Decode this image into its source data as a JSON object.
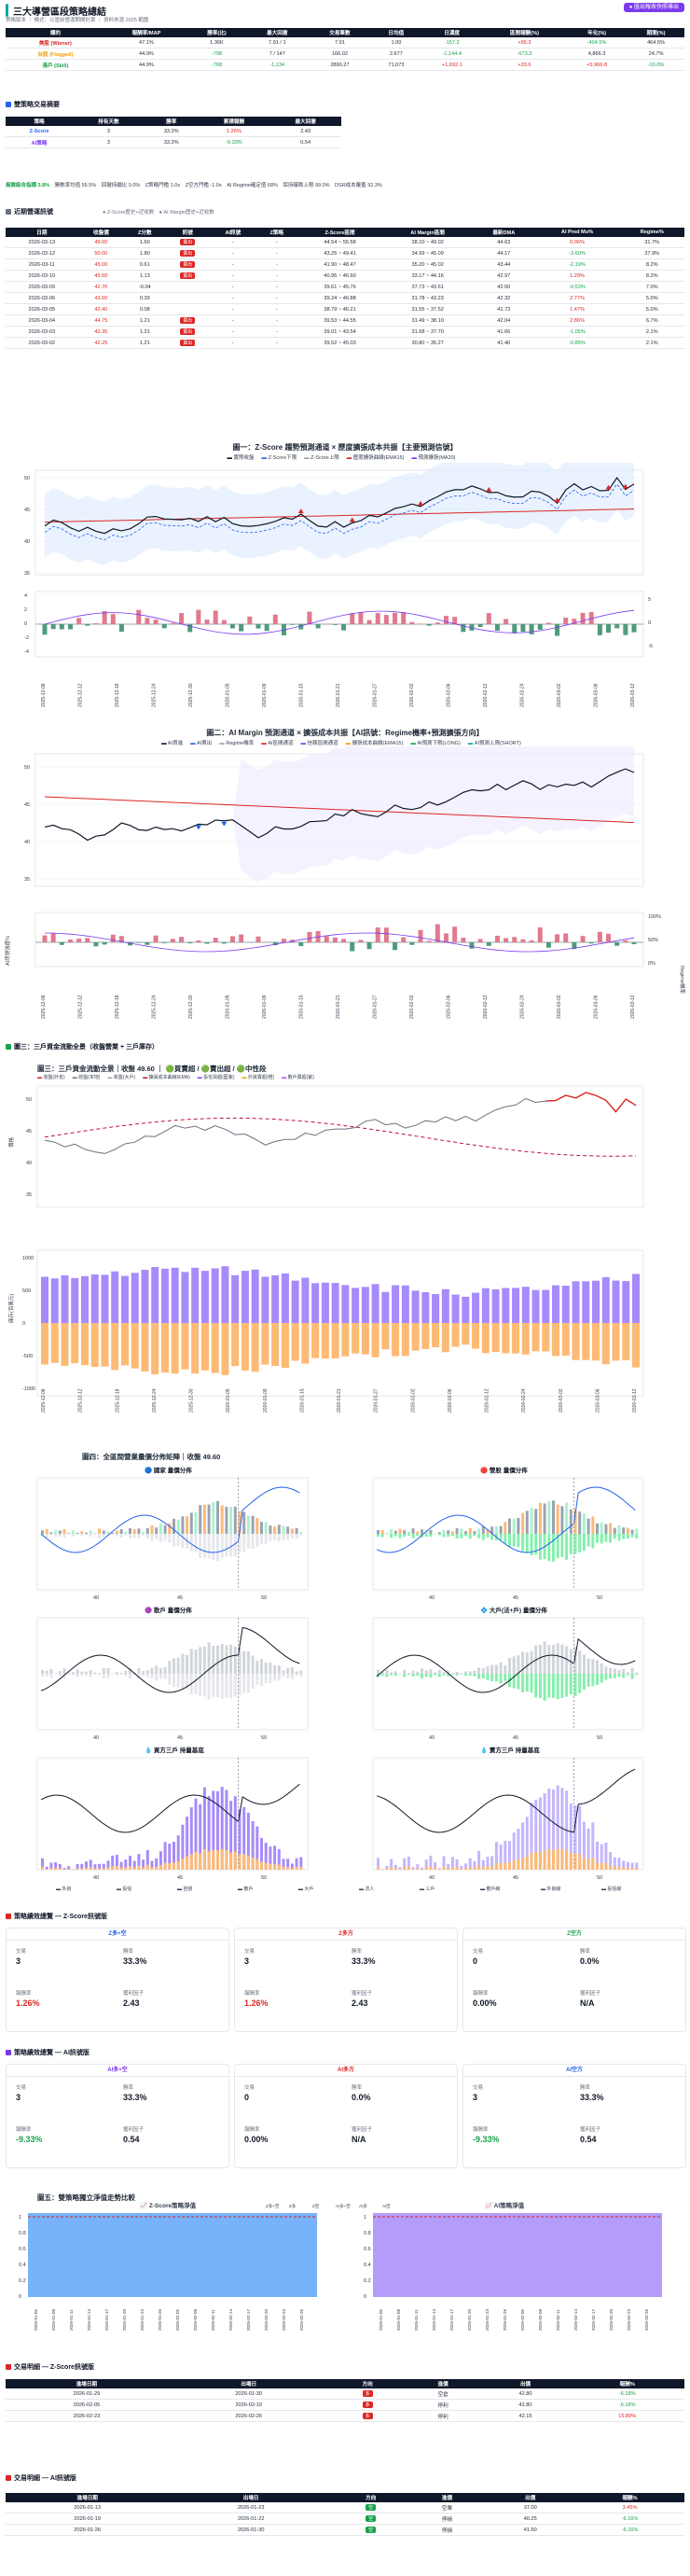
{
  "header": {
    "title": "三大導營區段策略總結",
    "subtitle": "策略版本 ｜ 模式：以當前營運期間計算 ｜ 資料來源 2025 範圍",
    "button_label": "● 匯出報表快照導出"
  },
  "summary_table": {
    "headers": [
      "標的",
      "報酬率/MAP",
      "勝率(比)",
      "最大回撤",
      "交易筆數",
      "日均值",
      "日濃度",
      "區間報酬(%)",
      "年化(%)",
      "期間(%)"
    ],
    "rows": [
      [
        "美股 (Wiener)",
        "47.1%",
        "1.36K",
        "7.91 / 1",
        "7.91",
        "1.00",
        "-157.2",
        "+95.3",
        "-404.5%",
        "464.5%"
      ],
      [
        "台股 (Flagged)",
        "44.9%",
        "-798",
        "7 / 147",
        "166.02",
        "2.677",
        "-1,144.4",
        "-673.3",
        "4,866.3",
        "24.7%"
      ],
      [
        "港戶 (Skill)",
        "44.9%",
        "-768",
        "-1,134",
        "2890.27",
        "71,073",
        "+1,692.1",
        "+33.6",
        "+5,966.8",
        "-10.0%"
      ]
    ]
  },
  "strategy_section": {
    "title": "雙策略交易摘要",
    "headers": [
      "策略",
      "持有天數",
      "勝率",
      "累積報酬",
      "最大回撤"
    ],
    "rows": [
      [
        "Z-Score",
        "3",
        "33.3%",
        "1.26%",
        "2.43"
      ],
      [
        "AI策略",
        "3",
        "33.3%",
        "-9.33%",
        "0.54"
      ]
    ],
    "stats": [
      "風險綜合指標 3.8%",
      "勝數率均值 55.5%",
      "回撤持續比 0.0%",
      "Z策略門檻 1.0x",
      "Z空方門檻 -1.0x",
      "AI Regime確定值 68%",
      "保持曝險上限 99.0%",
      "DSR成本覆蓋 92.3%"
    ]
  },
  "recent_section": {
    "title": "近期營運訊號",
    "legend": [
      "Z-Score歷史+近收數",
      "AI Margin歷史+近收數"
    ],
    "headers": [
      "日期",
      "收盤價",
      "Z分數",
      "訊號",
      "AI訊號",
      "Z策略",
      "Z-Score區間",
      "AI Margin區間",
      "最新DMA",
      "AI Pred Mu%",
      "Regime%"
    ],
    "rows": [
      [
        "2026-03-13",
        "49.60",
        "1.60",
        "賣出",
        "-",
        "-",
        "44.54 ~ 55.58",
        "38.10 ~ 49.02",
        "44.63",
        "0.06%",
        "31.7%"
      ],
      [
        "2026-03-12",
        "50.00",
        "1.80",
        "賣出",
        "-",
        "-",
        "43.25 ~ 49.41",
        "34.99 ~ 45.09",
        "44.17",
        "-3.60%",
        "37.9%"
      ],
      [
        "2026-03-11",
        "45.00",
        "0.61",
        "賣出",
        "-",
        "-",
        "41.90 ~ 48.47",
        "35.20 ~ 45.02",
        "43.44",
        "-2.19%",
        "8.2%"
      ],
      [
        "2026-03-10",
        "45.50",
        "1.13",
        "賣出",
        "-",
        "-",
        "40.95 ~ 46.60",
        "33.17 ~ 44.16",
        "42.97",
        "1.29%",
        "8.2%"
      ],
      [
        "2026-03-09",
        "42.70",
        "-0.04",
        "",
        "-",
        "-",
        "39.61 ~ 45.76",
        "37.73 ~ 43.61",
        "42.50",
        "-0.53%",
        "7.0%"
      ],
      [
        "2026-03-06",
        "43.60",
        "0.39",
        "",
        "-",
        "-",
        "39.24 ~ 46.88",
        "31.78 ~ 43.23",
        "42.32",
        "2.77%",
        "5.0%"
      ],
      [
        "2026-03-05",
        "42.40",
        "0.08",
        "",
        "-",
        "-",
        "38.79 ~ 46.21",
        "31.55 ~ 37.52",
        "41.73",
        "1.47%",
        "5.0%"
      ],
      [
        "2026-03-04",
        "44.75",
        "1.21",
        "賣出",
        "-",
        "-",
        "39.53 ~ 44.55",
        "31.49 ~ 38.10",
        "42.04",
        "2.86%",
        "6.7%"
      ],
      [
        "2026-03-03",
        "42.35",
        "1.21",
        "賣出",
        "-",
        "-",
        "39.01 ~ 43.54",
        "31.68 ~ 37.70",
        "41.66",
        "-1.05%",
        "2.1%"
      ],
      [
        "2026-03-02",
        "42.25",
        "1.21",
        "賣出",
        "-",
        "-",
        "39.52 ~ 45.03",
        "30.80 ~ 35.27",
        "41.40",
        "-0.85%",
        "2.1%"
      ]
    ]
  },
  "chart1": {
    "title": "圖一：Z-Score 趨勢預測通道 × 歷度擴張成本共振【主要預測信號】",
    "legend": [
      "實際收盤",
      "Z-Score下限",
      "Z-Score上限",
      "歷度擴張曲線(EMA15)",
      "預測擴張(MA20)"
    ],
    "xticks": [
      "2025-12-08",
      "2025-12-12",
      "2025-12-18",
      "2025-12-24",
      "2025-12-30",
      "2026-01-05",
      "2026-01-09",
      "2026-01-15",
      "2026-01-21",
      "2026-01-27",
      "2026-02-02",
      "2026-02-06",
      "2026-02-12",
      "2026-02-24",
      "2026-03-02",
      "2026-03-06",
      "2026-03-12"
    ],
    "yticks_top": [
      "50",
      "45",
      "40",
      "35"
    ],
    "yticks_bottom": [
      "4",
      "2",
      "0",
      "-2",
      "-4"
    ],
    "yticks_bottom_right": [
      "5",
      "0",
      "-5"
    ]
  },
  "chart2": {
    "title": "圖二：AI Margin 預測通道 × 擴張成本共振【AI訊號：Regime機率+預測擴張方向】",
    "legend": [
      "AI買進",
      "AI賣出",
      "Regime機率",
      "AI區間通道",
      "信賴區間通道",
      "擴張成本曲線(EMA15)",
      "AI預測下限(LONG)",
      "AI預測上限(SHORT)"
    ],
    "ylabel_left": "AI訊號強度%",
    "ylabel_right": "Regime機率",
    "yticks_top": [
      "50",
      "45",
      "40",
      "35"
    ],
    "yticks_right": [
      "100%",
      "50%",
      "0%"
    ]
  },
  "chart3": {
    "section_title": "圖三：三戶資金流動全景（收盤營業 + 三戶庫存）",
    "title": "圖三：三戶資金流動全景｜收盤 49.60 ｜ 🟢買賣超 / 🟢賣出超 / 🟢中性段",
    "legend": [
      "收盤(外省)",
      "收盤(本地)",
      "收盤(大戶)",
      "擴張成本曲線(EMA)",
      "投信買超(藍紫)",
      "外資賣超(橙)",
      "散戶賣超(紫)"
    ],
    "ylabel_top": "價格",
    "ylabel_bottom": "庫存(百萬元)",
    "yticks_top": [
      "50",
      "45",
      "40",
      "35"
    ],
    "yticks_bottom": [
      "1000",
      "500",
      "0",
      "-500",
      "-1000"
    ]
  },
  "chart4": {
    "title": "圖四：全區間營業量價分佈矩陣｜收盤 49.60",
    "panels": [
      "🔵 國家 量價分佈",
      "🔴 營股 量價分佈",
      "🟣 散戶 量價分佈",
      "💠 大戶(法+戶) 量價分佈",
      "💧 買方三戶 持量基底",
      "💧 賣方三戶 持量基底"
    ],
    "xticks": [
      "40",
      "45",
      "50"
    ],
    "legend": [
      "外資",
      "投信",
      "自營",
      "散戶",
      "大戶",
      "法人",
      "三戶",
      "散戶線",
      "外資線",
      "投信線"
    ]
  },
  "zscore_summary": {
    "title": "策略績效總覽 — Z-Score訊號版",
    "cards": [
      {
        "label": "Z多+空",
        "trades": "3",
        "winrate": "33.3%",
        "ret": "1.26%",
        "pf": "2.43",
        "color": "#2563eb"
      },
      {
        "label": "Z多方",
        "trades": "3",
        "winrate": "33.3%",
        "ret": "1.26%",
        "pf": "2.43",
        "color": "#dc2626"
      },
      {
        "label": "Z空方",
        "trades": "0",
        "winrate": "0.0%",
        "ret": "0.00%",
        "pf": "N/A",
        "color": "#16a34a"
      }
    ],
    "labels": {
      "trades": "交易",
      "winrate": "勝率",
      "ret": "報酬率",
      "pf": "獲利因子"
    }
  },
  "ai_summary": {
    "title": "策略績效總覽 — AI訊號版",
    "cards": [
      {
        "label": "AI多+空",
        "trades": "3",
        "winrate": "33.3%",
        "ret": "-9.33%",
        "pf": "0.54",
        "color": "#7c3aed"
      },
      {
        "label": "AI多方",
        "trades": "0",
        "winrate": "0.0%",
        "ret": "0.00%",
        "pf": "N/A",
        "color": "#dc2626"
      },
      {
        "label": "AI空方",
        "trades": "3",
        "winrate": "33.3%",
        "ret": "-9.33%",
        "pf": "0.54",
        "color": "#2563eb"
      }
    ]
  },
  "chart5": {
    "title": "圖五：雙策略獨立淨值走勢比較",
    "left_title": "📈 Z-Score策略淨值",
    "right_title": "📈 AI策略淨值",
    "legend": [
      "Z多+空",
      "Z多",
      "Z空",
      "AI多+空",
      "AI多",
      "AI空"
    ],
    "yticks": [
      "1",
      "0.8",
      "0.6",
      "0.4",
      "0.2",
      "0"
    ]
  },
  "z_trades": {
    "title": "交易明細 — Z-Score訊號版",
    "headers": [
      "進場日期",
      "出場日",
      "方向",
      "進價",
      "出價",
      "報酬%"
    ],
    "rows": [
      [
        "2026-01-29",
        "2026-01-30",
        "多",
        "空倉",
        "42.80",
        "-6.18%"
      ],
      [
        "2026-02-05",
        "2026-02-10",
        "多",
        "停利",
        "42.80",
        "-6.18%"
      ],
      [
        "2026-02-23",
        "2026-02-26",
        "多",
        "停利",
        "42.15",
        "15.89%"
      ]
    ]
  },
  "ai_trades": {
    "title": "交易明細 — AI訊號版",
    "headers": [
      "進場日期",
      "出場日",
      "方向",
      "進價",
      "出價",
      "報酬%"
    ],
    "rows": [
      [
        "2026-01-13",
        "2026-01-23",
        "空",
        "空單",
        "37.00",
        "3.45%"
      ],
      [
        "2026-01-19",
        "2026-01-22",
        "空",
        "停損",
        "40.25",
        "-6.16%"
      ],
      [
        "2026-01-26",
        "2026-01-30",
        "空",
        "停損",
        "41.60",
        "-6.16%"
      ]
    ]
  },
  "colors": {
    "navy": "#0f172a",
    "red": "#dc2626",
    "green": "#16a34a",
    "purple": "#7c3aed",
    "orange": "#f59e0b",
    "blue": "#2563eb"
  }
}
